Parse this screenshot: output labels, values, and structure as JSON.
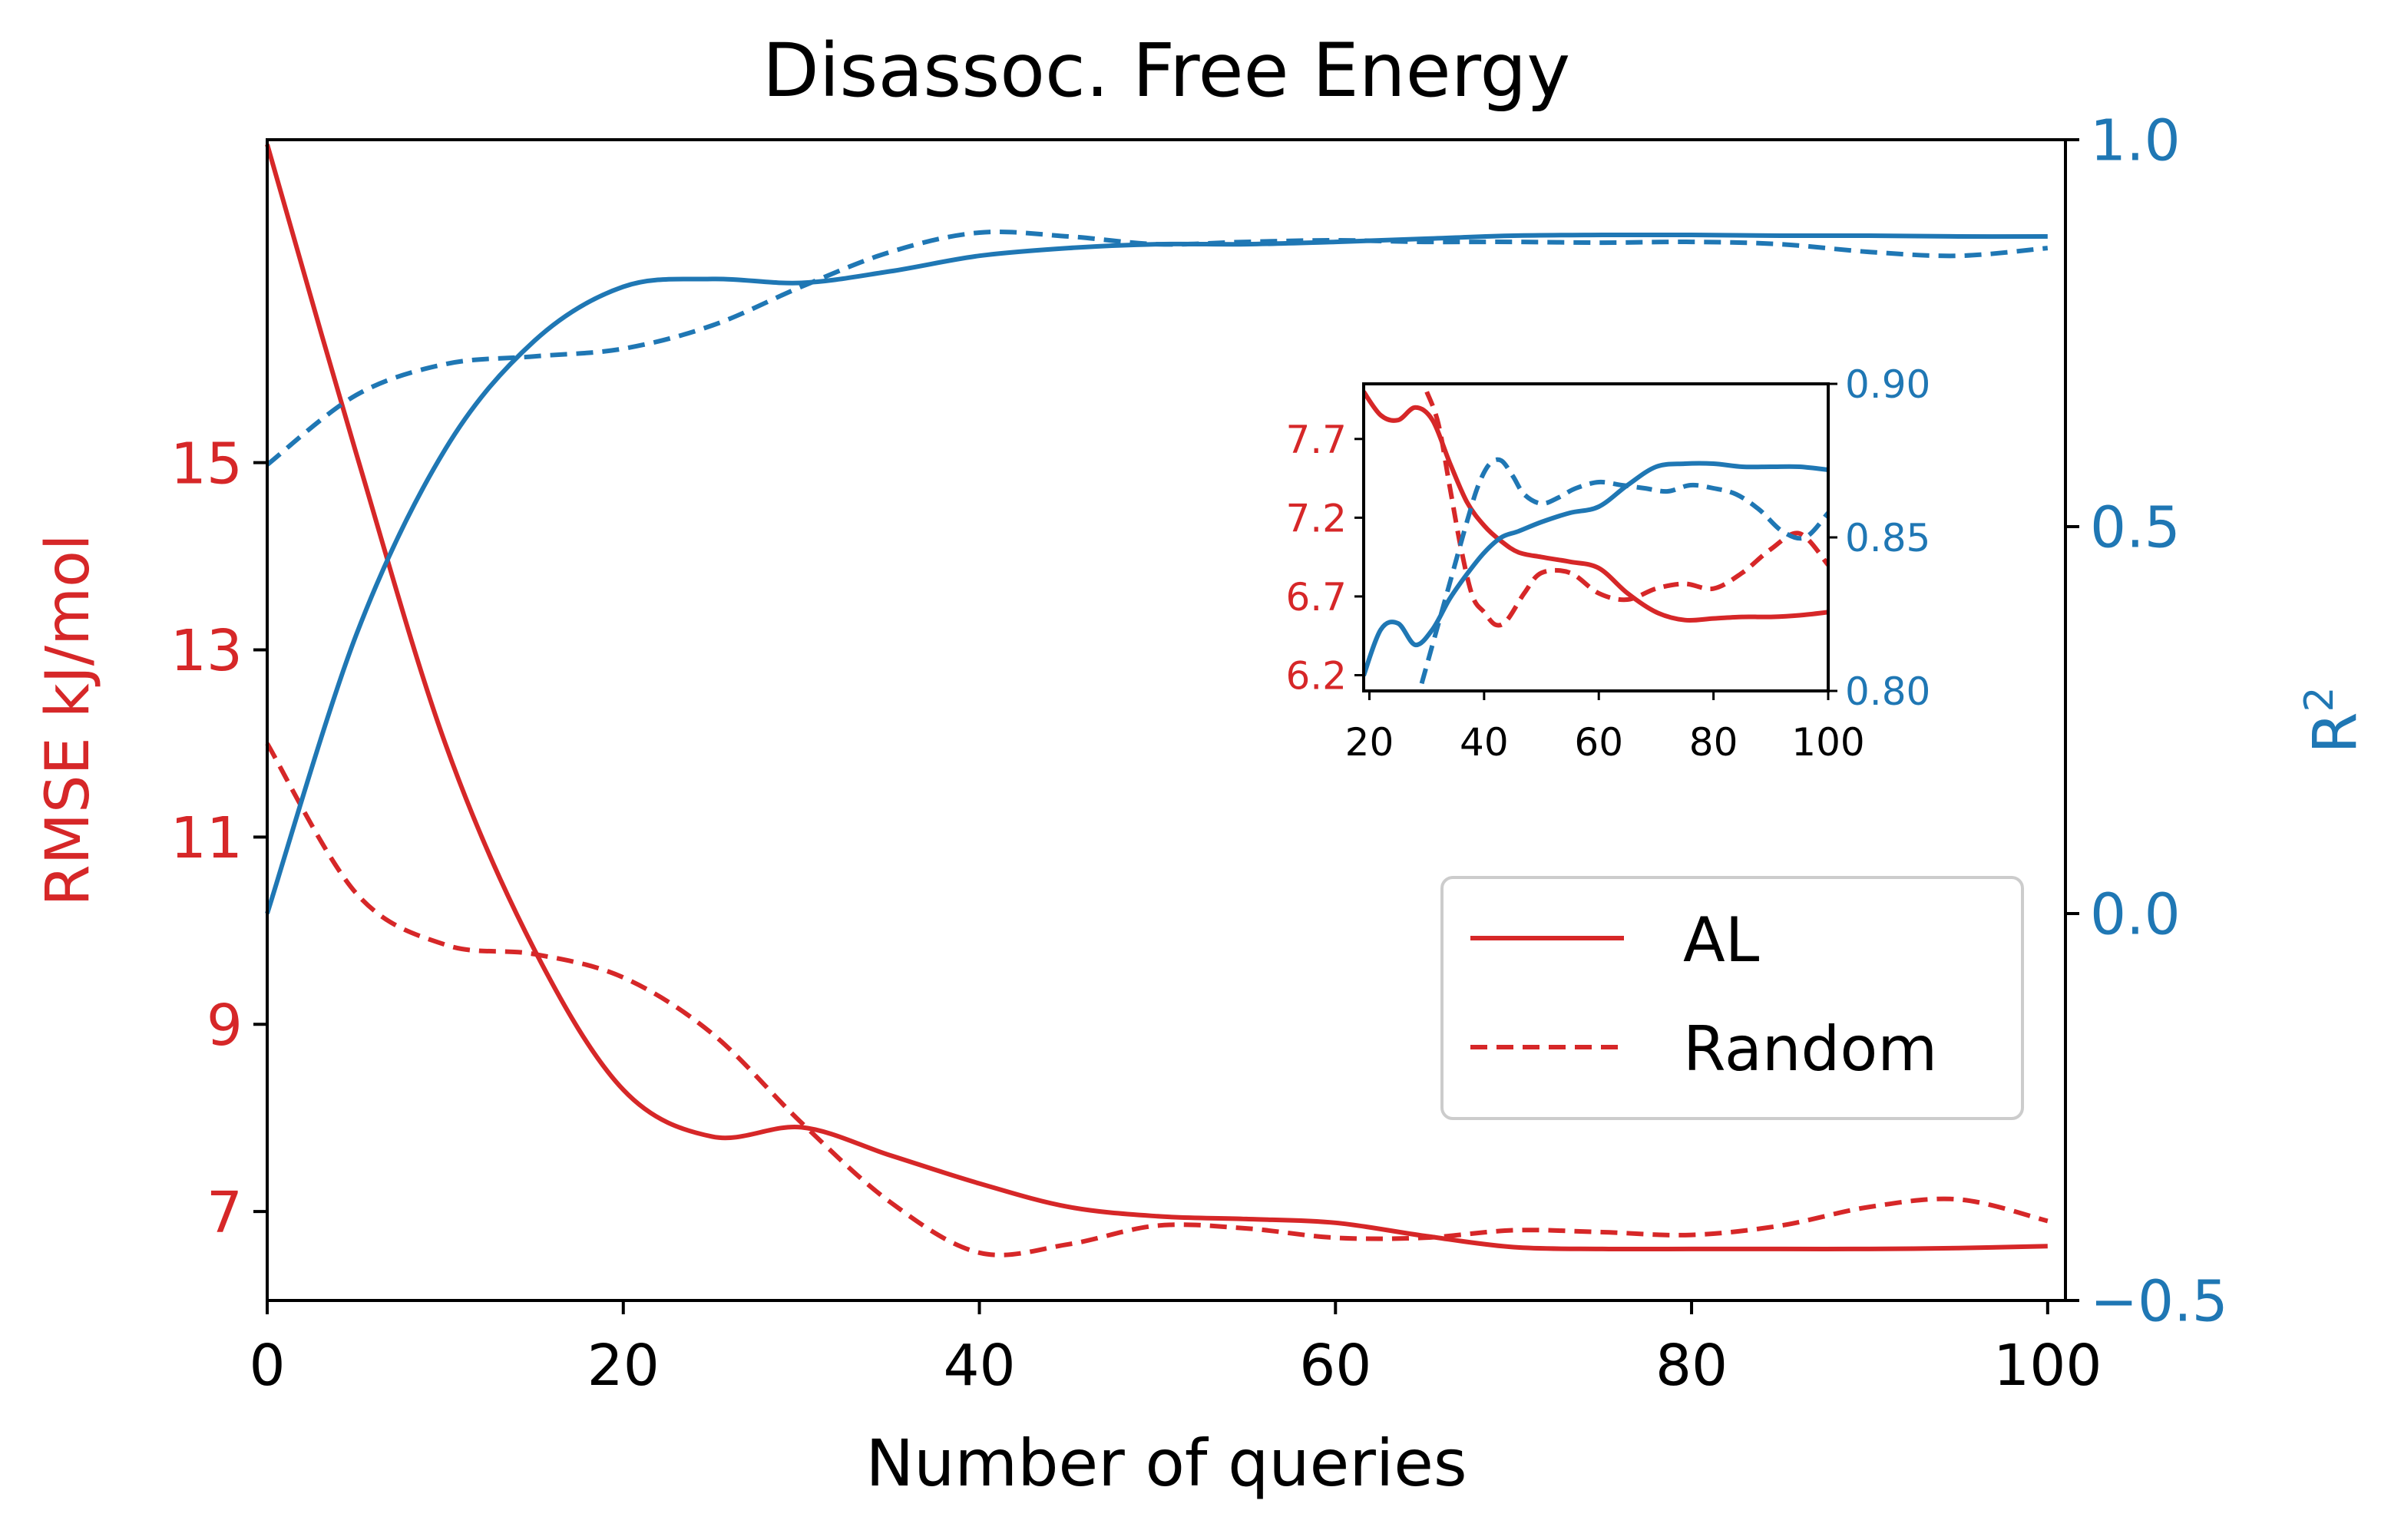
{
  "chart_data": [
    {
      "type": "line",
      "title": "Disassoc. Free Energy",
      "xlabel": "Number of queries",
      "ylabel_left": "RMSE kJ/mol",
      "ylabel_right": "R",
      "ylabel_right_superscript": "2",
      "xlim": [
        0,
        101
      ],
      "ylim_left": [
        6.05,
        18.45
      ],
      "ylim_right": [
        -0.5,
        1.0
      ],
      "x_ticks": [
        "0",
        "20",
        "40",
        "60",
        "80",
        "100"
      ],
      "y_ticks_left": [
        "7",
        "9",
        "11",
        "13",
        "15"
      ],
      "y_ticks_right": [
        "−0.5",
        "0.0",
        "0.5",
        "1.0"
      ],
      "grid": false,
      "legend": {
        "placement": "center-right",
        "entries": [
          "AL",
          "Random"
        ]
      },
      "colors": {
        "rmse": "#d62728",
        "r2": "#1f77b4"
      },
      "series": [
        {
          "name": "AL",
          "metric": "RMSE",
          "axis": "left",
          "style": "solid",
          "x": [
            0,
            5,
            10,
            15,
            20,
            25,
            30,
            35,
            40,
            45,
            50,
            55,
            60,
            65,
            70,
            75,
            80,
            85,
            90,
            95,
            100
          ],
          "y": [
            18.4,
            15.1,
            12.0,
            9.8,
            8.3,
            7.8,
            7.9,
            7.6,
            7.3,
            7.05,
            6.95,
            6.92,
            6.88,
            6.74,
            6.62,
            6.6,
            6.6,
            6.6,
            6.6,
            6.61,
            6.63
          ]
        },
        {
          "name": "Random",
          "metric": "RMSE",
          "axis": "left",
          "style": "dashed",
          "x": [
            0,
            5,
            10,
            15,
            20,
            25,
            30,
            35,
            40,
            45,
            50,
            55,
            60,
            65,
            70,
            75,
            80,
            85,
            90,
            95,
            100
          ],
          "y": [
            12.0,
            10.4,
            9.85,
            9.75,
            9.5,
            8.9,
            7.95,
            7.1,
            6.56,
            6.65,
            6.85,
            6.82,
            6.72,
            6.72,
            6.8,
            6.78,
            6.75,
            6.85,
            7.05,
            7.13,
            6.9
          ]
        },
        {
          "name": "AL",
          "metric": "R2",
          "axis": "right",
          "style": "solid",
          "x": [
            0,
            5,
            10,
            15,
            20,
            25,
            30,
            35,
            40,
            45,
            50,
            55,
            60,
            65,
            70,
            75,
            80,
            85,
            90,
            95,
            100
          ],
          "y": [
            0.0,
            0.36,
            0.6,
            0.74,
            0.81,
            0.82,
            0.815,
            0.83,
            0.85,
            0.86,
            0.865,
            0.865,
            0.868,
            0.872,
            0.876,
            0.877,
            0.877,
            0.876,
            0.876,
            0.875,
            0.875
          ]
        },
        {
          "name": "Random",
          "metric": "R2",
          "axis": "right",
          "style": "dashed",
          "x": [
            0,
            5,
            10,
            15,
            20,
            25,
            30,
            35,
            40,
            45,
            50,
            55,
            60,
            65,
            70,
            75,
            80,
            85,
            90,
            95,
            100
          ],
          "y": [
            0.58,
            0.67,
            0.71,
            0.72,
            0.73,
            0.76,
            0.81,
            0.855,
            0.88,
            0.875,
            0.865,
            0.868,
            0.87,
            0.868,
            0.868,
            0.867,
            0.868,
            0.865,
            0.855,
            0.85,
            0.86
          ]
        }
      ]
    },
    {
      "type": "line",
      "role": "inset",
      "xlim": [
        19,
        100
      ],
      "ylim_left": [
        6.1,
        8.05
      ],
      "ylim_right": [
        0.8,
        0.9
      ],
      "x_ticks": [
        "20",
        "40",
        "60",
        "80",
        "100"
      ],
      "y_ticks_left": [
        "6.2",
        "6.7",
        "7.2",
        "7.7"
      ],
      "y_ticks_right": [
        "0.80",
        "0.85",
        "0.90"
      ],
      "series": [
        {
          "name": "AL",
          "metric": "RMSE",
          "axis": "left",
          "style": "solid",
          "x": [
            19,
            22,
            25,
            28,
            31,
            34,
            37,
            40,
            43,
            46,
            50,
            55,
            60,
            65,
            70,
            75,
            80,
            85,
            90,
            95,
            100
          ],
          "y": [
            8.0,
            7.85,
            7.82,
            7.9,
            7.82,
            7.55,
            7.3,
            7.15,
            7.05,
            6.98,
            6.95,
            6.92,
            6.88,
            6.72,
            6.6,
            6.55,
            6.56,
            6.57,
            6.57,
            6.58,
            6.6
          ]
        },
        {
          "name": "Random",
          "metric": "RMSE",
          "axis": "left",
          "style": "dashed",
          "x": [
            30,
            32,
            34,
            36,
            38,
            40,
            42,
            44,
            47,
            50,
            55,
            60,
            65,
            70,
            75,
            80,
            85,
            90,
            95,
            100
          ],
          "y": [
            8.0,
            7.8,
            7.4,
            7.0,
            6.7,
            6.6,
            6.52,
            6.55,
            6.72,
            6.85,
            6.85,
            6.72,
            6.68,
            6.75,
            6.78,
            6.75,
            6.85,
            7.0,
            7.1,
            6.9
          ]
        },
        {
          "name": "AL",
          "metric": "R2",
          "axis": "right",
          "style": "solid",
          "x": [
            19,
            22,
            25,
            28,
            31,
            34,
            37,
            40,
            43,
            46,
            50,
            55,
            60,
            65,
            70,
            75,
            80,
            85,
            90,
            95,
            100
          ],
          "y": [
            0.805,
            0.82,
            0.822,
            0.815,
            0.82,
            0.83,
            0.838,
            0.845,
            0.85,
            0.852,
            0.855,
            0.858,
            0.86,
            0.867,
            0.873,
            0.874,
            0.874,
            0.873,
            0.873,
            0.873,
            0.872
          ]
        },
        {
          "name": "Random",
          "metric": "R2",
          "axis": "right",
          "style": "dashed",
          "x": [
            28,
            31,
            34,
            37,
            39,
            41,
            43,
            45,
            47,
            50,
            53,
            56,
            60,
            64,
            68,
            72,
            76,
            80,
            84,
            88,
            92,
            96,
            100
          ],
          "y": [
            0.795,
            0.815,
            0.835,
            0.855,
            0.867,
            0.874,
            0.875,
            0.87,
            0.864,
            0.861,
            0.863,
            0.866,
            0.868,
            0.867,
            0.866,
            0.865,
            0.867,
            0.866,
            0.864,
            0.859,
            0.852,
            0.85,
            0.858
          ]
        }
      ]
    }
  ]
}
